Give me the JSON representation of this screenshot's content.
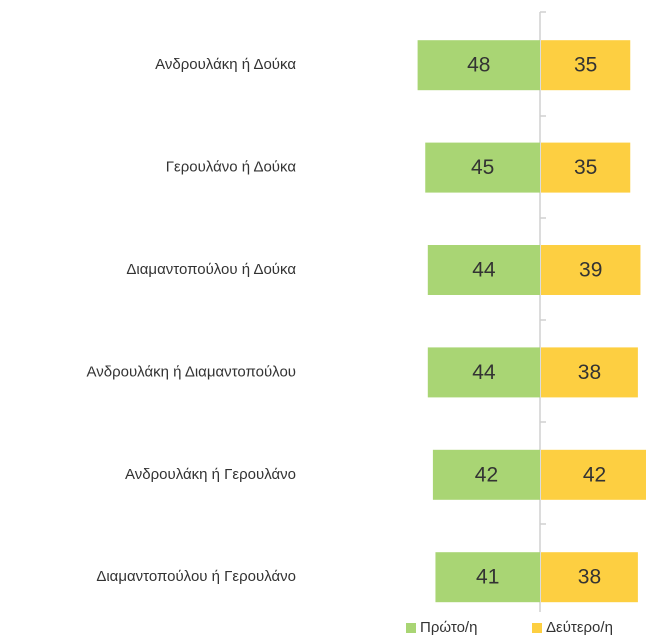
{
  "chart_data": {
    "type": "bar",
    "orientation": "horizontal",
    "diverging": true,
    "categories": [
      "Ανδρουλάκη ή Δούκα",
      "Γερουλάνο ή Δούκα",
      "Διαμαντοπούλου ή Δούκα",
      "Ανδρουλάκη ή Διαμαντοπούλου",
      "Ανδρουλάκη ή Γερουλάνο",
      "Διαμαντοπούλου ή Γερουλάνο"
    ],
    "series": [
      {
        "name": "Πρώτο/η",
        "color": "#a9d574",
        "values": [
          48,
          45,
          44,
          44,
          42,
          41
        ]
      },
      {
        "name": "Δεύτερο/η",
        "color": "#fdcf41",
        "values": [
          35,
          35,
          39,
          38,
          42,
          38
        ]
      }
    ],
    "legend": "bottom"
  }
}
